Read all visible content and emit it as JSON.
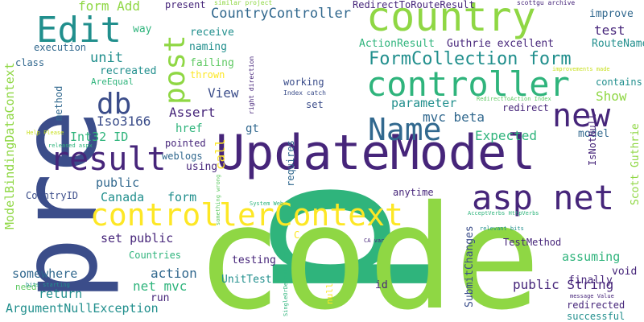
{
  "palette": {
    "dark_purple": "#46257a",
    "indigo": "#3b4d8a",
    "steel_blue": "#31688e",
    "teal": "#218f8d",
    "green": "#2fb47c",
    "light_green": "#8fd744",
    "lime": "#5ec962",
    "yellow": "#fde725",
    "yellow_green": "#c8e020"
  },
  "words": [
    {
      "text": "p",
      "color": "#2fb47c"
    },
    {
      "text": "code",
      "color": "#8fd744"
    },
    {
      "text": "pre",
      "color": "#3b4d8a"
    },
    {
      "text": "UpdateModel",
      "color": "#46257a"
    },
    {
      "text": "country",
      "color": "#8fd744"
    },
    {
      "text": "controllerContext",
      "color": "#fde725"
    },
    {
      "text": "controller",
      "color": "#2fb47c"
    },
    {
      "text": "result",
      "color": "#46257a"
    },
    {
      "text": "asp net",
      "color": "#46257a"
    },
    {
      "text": "Name",
      "color": "#31688e"
    },
    {
      "text": "new",
      "color": "#46257a"
    },
    {
      "text": "Edit",
      "color": "#218f8d"
    },
    {
      "text": "post",
      "color": "#8fd744"
    },
    {
      "text": "db",
      "color": "#3b4d8a"
    },
    {
      "text": "FormCollection form",
      "color": "#218f8d"
    },
    {
      "text": "CountryController",
      "color": "#31688e"
    },
    {
      "text": "unit",
      "color": "#218f8d"
    },
    {
      "text": "form Add",
      "color": "#8fd744"
    },
    {
      "text": "present",
      "color": "#46257a"
    },
    {
      "text": "RedirectToRouteResult",
      "color": "#46257a"
    },
    {
      "text": "test",
      "color": "#46257a"
    },
    {
      "text": "improve",
      "color": "#31688e"
    },
    {
      "text": "way",
      "color": "#2fb47c"
    },
    {
      "text": "receive",
      "color": "#218f8d"
    },
    {
      "text": "ActionResult",
      "color": "#2fb47c"
    },
    {
      "text": "Guthrie excellent",
      "color": "#46257a"
    },
    {
      "text": "RouteName",
      "color": "#218f8d"
    },
    {
      "text": "execution",
      "color": "#31688e"
    },
    {
      "text": "naming",
      "color": "#218f8d"
    },
    {
      "text": "class",
      "color": "#31688e"
    },
    {
      "text": "recreated",
      "color": "#218f8d"
    },
    {
      "text": "failing",
      "color": "#5ec962"
    },
    {
      "text": "AreEqual",
      "color": "#2fb47c"
    },
    {
      "text": "thrown",
      "color": "#fde725"
    },
    {
      "text": "working",
      "color": "#3b4d8a"
    },
    {
      "text": "contains",
      "color": "#218f8d"
    },
    {
      "text": "ModelBindingDataContext",
      "color": "#8fd744"
    },
    {
      "text": "method",
      "color": "#31688e"
    },
    {
      "text": "View",
      "color": "#3b4d8a"
    },
    {
      "text": "set",
      "color": "#3b4d8a"
    },
    {
      "text": "parameter",
      "color": "#218f8d"
    },
    {
      "text": "Show",
      "color": "#8fd744"
    },
    {
      "text": "Assert",
      "color": "#46257a"
    },
    {
      "text": "mvc beta",
      "color": "#31688e"
    },
    {
      "text": "redirect",
      "color": "#46257a"
    },
    {
      "text": "Int32 ID",
      "color": "#2fb47c"
    },
    {
      "text": "Iso3166",
      "color": "#3b4d8a"
    },
    {
      "text": "href",
      "color": "#2fb47c"
    },
    {
      "text": "gt",
      "color": "#31688e"
    },
    {
      "text": "Expected",
      "color": "#2fb47c"
    },
    {
      "text": "model",
      "color": "#31688e"
    },
    {
      "text": "IsNotNull",
      "color": "#46257a"
    },
    {
      "text": "Scott Guthrie",
      "color": "#8fd744"
    },
    {
      "text": "pointed",
      "color": "#46257a"
    },
    {
      "text": "call",
      "color": "#fde725"
    },
    {
      "text": "weblogs",
      "color": "#31688e"
    },
    {
      "text": "using",
      "color": "#46257a"
    },
    {
      "text": "public",
      "color": "#31688e"
    },
    {
      "text": "Canada",
      "color": "#218f8d"
    },
    {
      "text": "form",
      "color": "#218f8d"
    },
    {
      "text": "CountryID",
      "color": "#3b4d8a"
    },
    {
      "text": "anytime",
      "color": "#46257a"
    },
    {
      "text": "set public",
      "color": "#46257a"
    },
    {
      "text": "TestMethod",
      "color": "#46257a"
    },
    {
      "text": "assuming",
      "color": "#2fb47c"
    },
    {
      "text": "somewhere",
      "color": "#31688e"
    },
    {
      "text": "action",
      "color": "#31688e"
    },
    {
      "text": "testing",
      "color": "#46257a"
    },
    {
      "text": "finally",
      "color": "#46257a"
    },
    {
      "text": "void",
      "color": "#46257a"
    },
    {
      "text": "net mvc",
      "color": "#2fb47c"
    },
    {
      "text": "UnitTest",
      "color": "#218f8d"
    },
    {
      "text": "public String",
      "color": "#46257a"
    },
    {
      "text": "return",
      "color": "#218f8d"
    },
    {
      "text": "ArgumentNullException",
      "color": "#218f8d"
    },
    {
      "text": "run",
      "color": "#46257a"
    },
    {
      "text": "id",
      "color": "#46257a"
    },
    {
      "text": "redirected",
      "color": "#46257a"
    },
    {
      "text": "successful",
      "color": "#218f8d"
    },
    {
      "text": "need",
      "color": "#5ec962"
    },
    {
      "text": "Countries",
      "color": "#2fb47c"
    },
    {
      "text": "SubmitChanges",
      "color": "#3b4d8a"
    },
    {
      "text": "requires",
      "color": "#31688e"
    },
    {
      "text": "similar project",
      "color": "#8fd744"
    },
    {
      "text": "scottgu archive",
      "color": "#46257a"
    },
    {
      "text": "Index catch",
      "color": "#3b4d8a"
    },
    {
      "text": "right direction",
      "color": "#46257a"
    },
    {
      "text": "improvements made",
      "color": "#c8e020"
    },
    {
      "text": "RedirectToAction Index",
      "color": "#5ec962"
    },
    {
      "text": "Help Please",
      "color": "#c8e020"
    },
    {
      "text": "released aspx",
      "color": "#2fb47c"
    },
    {
      "text": "relevant bits",
      "color": "#218f8d"
    },
    {
      "text": "something wrong",
      "color": "#5ec962"
    },
    {
      "text": "System Web",
      "color": "#2fb47c"
    },
    {
      "text": "AcceptVerbs HttpVerbs",
      "color": "#2fb47c"
    },
    {
      "text": "CA var",
      "color": "#46257a"
    },
    {
      "text": "message Value",
      "color": "#46257a"
    },
    {
      "text": "bits starting",
      "color": "#218f8d"
    },
    {
      "text": "SingleOrDefault try",
      "color": "#2fb47c"
    },
    {
      "text": "null",
      "color": "#fde725"
    },
    {
      "text": "C",
      "color": "#fde725"
    }
  ]
}
